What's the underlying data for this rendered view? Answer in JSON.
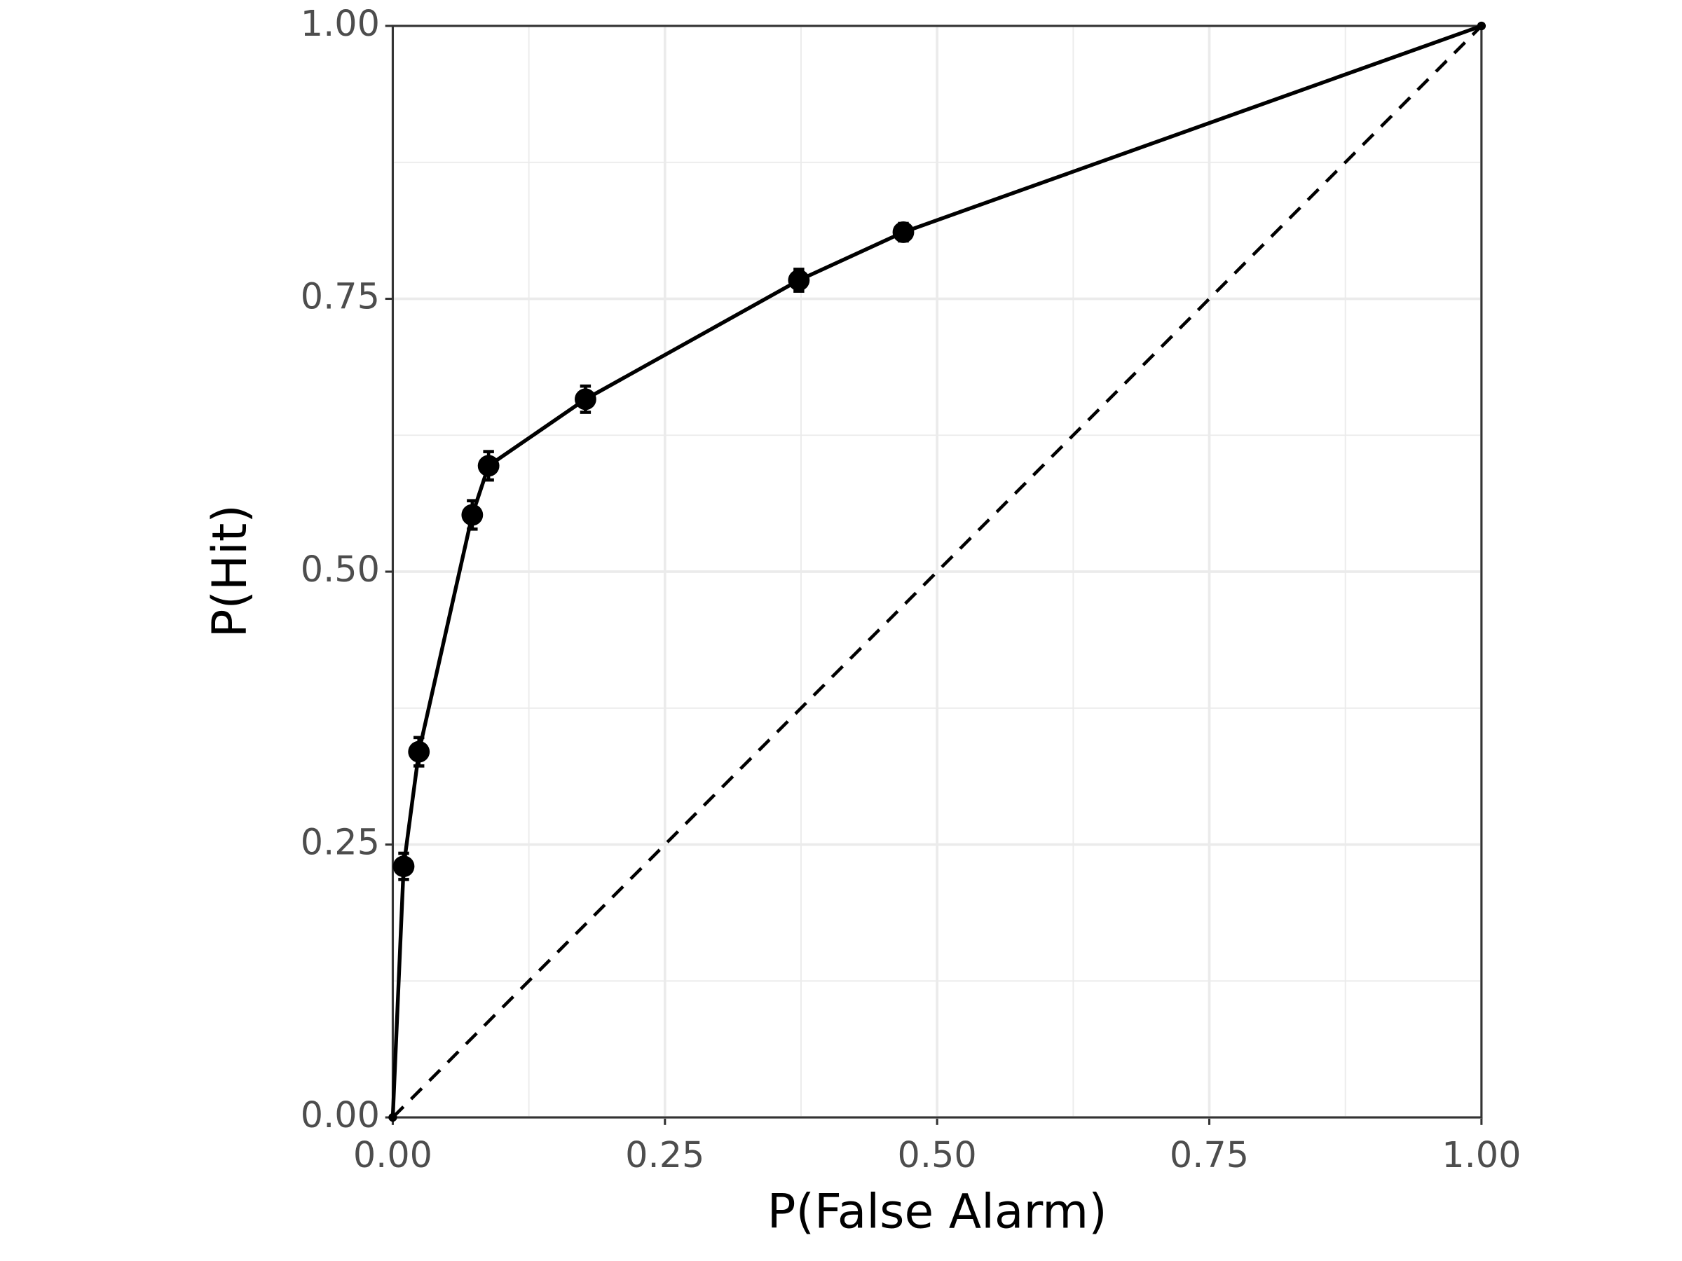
{
  "chart_data": {
    "type": "line",
    "xlabel": "P(False Alarm)",
    "ylabel": "P(Hit)",
    "x": [
      0,
      0.01,
      0.024,
      0.073,
      0.088,
      0.177,
      0.373,
      0.469,
      1
    ],
    "series": [
      {
        "color": "#000000",
        "values": [
          0,
          0.23,
          0.335,
          0.552,
          0.597,
          0.658,
          0.767,
          0.811,
          1
        ],
        "yerr": [
          0,
          0.012,
          0.013,
          0.013,
          0.013,
          0.012,
          0.01,
          0.008,
          0
        ],
        "xerr": [
          0,
          0.002,
          0.002,
          0.002,
          0.003,
          0.004,
          0.005,
          0.005,
          0
        ]
      }
    ],
    "xlim": [
      0,
      1
    ],
    "ylim": [
      0,
      1
    ],
    "xticks": [
      {
        "value": 0,
        "label": "0.00"
      },
      {
        "value": 0.25,
        "label": "0.25"
      },
      {
        "value": 0.5,
        "label": "0.50"
      },
      {
        "value": 0.75,
        "label": "0.75"
      },
      {
        "value": 1,
        "label": "1.00"
      }
    ],
    "yticks": [
      {
        "value": 0,
        "label": "0.00"
      },
      {
        "value": 0.25,
        "label": "0.25"
      },
      {
        "value": 0.5,
        "label": "0.50"
      },
      {
        "value": 0.75,
        "label": "0.75"
      },
      {
        "value": 1,
        "label": "1.00"
      }
    ],
    "grid": true
  }
}
